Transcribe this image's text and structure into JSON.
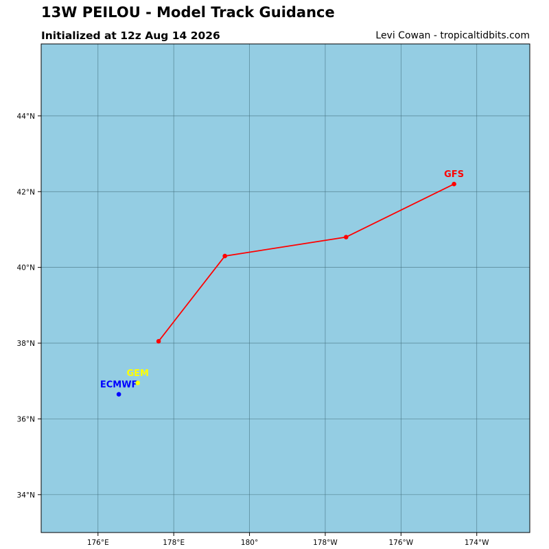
{
  "header": {
    "title": "13W PEILOU - Model Track Guidance",
    "subtitle": "Initialized at 12z Aug 14 2026",
    "credit": "Levi Cowan - tropicaltidbits.com"
  },
  "colors": {
    "ocean": "#94cde3",
    "grid": "#3f6a78",
    "GFS": "#ff0000",
    "ECMWF": "#0000ff",
    "GEM": "#ffff00"
  },
  "chart_data": {
    "type": "map",
    "lon_range": [
      174.5,
      187.4
    ],
    "lat_range": [
      33.0,
      45.9
    ],
    "grid": true,
    "lon_ticks": [
      {
        "value": 176,
        "label": "176°E"
      },
      {
        "value": 178,
        "label": "178°E"
      },
      {
        "value": 180,
        "label": "180°"
      },
      {
        "value": 182,
        "label": "178°W"
      },
      {
        "value": 184,
        "label": "176°W"
      },
      {
        "value": 186,
        "label": "174°W"
      }
    ],
    "lat_ticks": [
      {
        "value": 34,
        "label": "34°N"
      },
      {
        "value": 36,
        "label": "36°N"
      },
      {
        "value": 38,
        "label": "38°N"
      },
      {
        "value": 40,
        "label": "40°N"
      },
      {
        "value": 42,
        "label": "42°N"
      },
      {
        "value": 44,
        "label": "44°N"
      }
    ],
    "series": [
      {
        "name": "GFS",
        "points": [
          [
            177.6,
            38.05
          ],
          [
            179.35,
            40.3
          ],
          [
            182.55,
            40.8
          ],
          [
            185.4,
            42.2
          ]
        ]
      },
      {
        "name": "ECMWF",
        "points": [
          [
            176.55,
            36.65
          ]
        ]
      },
      {
        "name": "GEM",
        "points": [
          [
            177.05,
            36.95
          ]
        ]
      }
    ]
  }
}
